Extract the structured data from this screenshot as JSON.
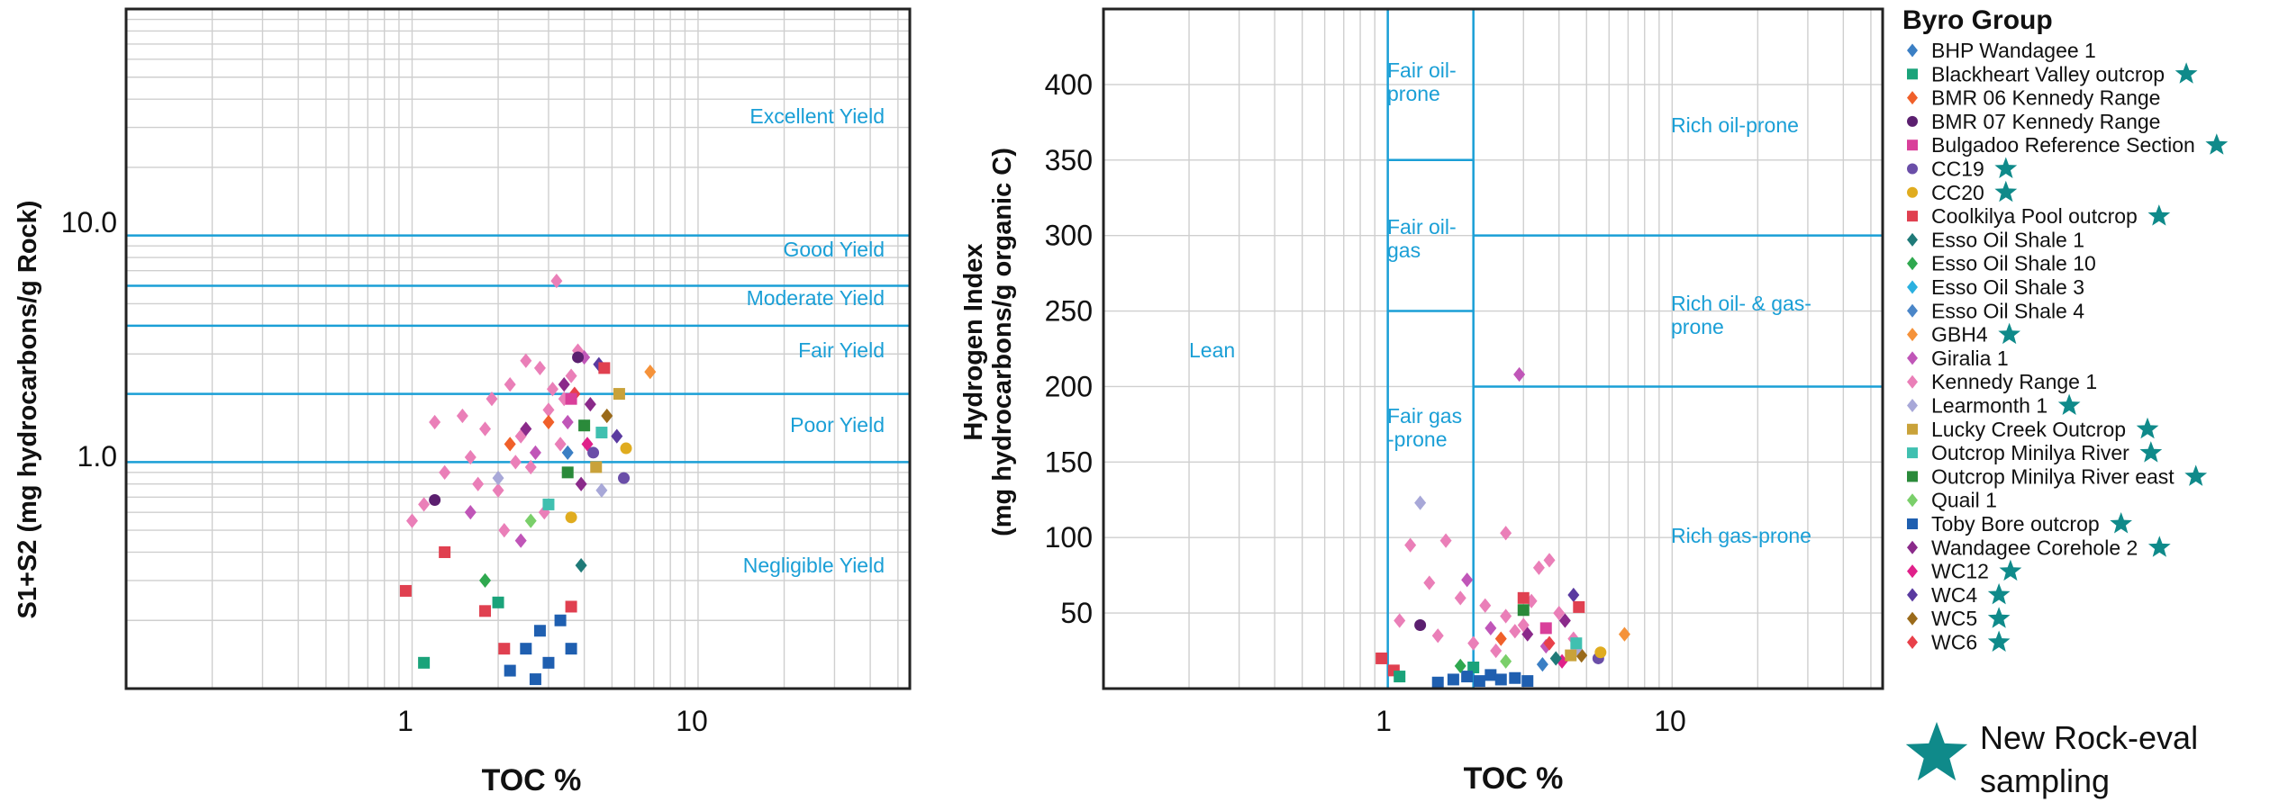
{
  "charts": [
    {
      "xlabel": "TOC %",
      "ylabel": "S1+S2 (mg hydrocarbons/g Rock)",
      "xticks": [
        "1",
        "10"
      ],
      "yticks": [
        "1.0",
        "10.0"
      ],
      "zones": [
        "Excellent Yield",
        "Good Yield",
        "Moderate Yield",
        "Fair Yield",
        "Poor Yield",
        "Negligible Yield"
      ]
    },
    {
      "xlabel": "TOC %",
      "ylabel_line1": "Hydrogen Index",
      "ylabel_line2": "(mg hydrocarbons/g organic C)",
      "xticks": [
        "1",
        "10"
      ],
      "yticks": [
        "50",
        "100",
        "150",
        "200",
        "250",
        "300",
        "350",
        "400"
      ],
      "zones": [
        "Lean",
        "Fair oil-",
        "prone",
        "Fair oil-",
        "gas",
        "Fair gas",
        "-prone",
        "Rich oil-prone",
        "Rich oil- & gas-",
        "prone",
        "Rich gas-prone"
      ]
    }
  ],
  "legend": {
    "title": "Byro Group",
    "entries": [
      {
        "name": "BHP Wandagee 1",
        "color": "#3b7fc4",
        "marker": "diamond",
        "star": false
      },
      {
        "name": "Blackheart Valley outcrop",
        "color": "#1aa37a",
        "marker": "square",
        "star": true
      },
      {
        "name": "BMR 06 Kennedy Range",
        "color": "#f0602a",
        "marker": "diamond",
        "star": false
      },
      {
        "name": "BMR 07 Kennedy Range",
        "color": "#5b1f6f",
        "marker": "circle",
        "star": false
      },
      {
        "name": "Bulgadoo Reference Section",
        "color": "#d93f9a",
        "marker": "square",
        "star": true
      },
      {
        "name": "CC19",
        "color": "#6a4ea8",
        "marker": "circle",
        "star": true
      },
      {
        "name": "CC20",
        "color": "#e0ac1f",
        "marker": "circle",
        "star": true
      },
      {
        "name": "Coolkilya Pool outcrop",
        "color": "#e04050",
        "marker": "square",
        "star": true
      },
      {
        "name": "Esso Oil Shale 1",
        "color": "#1f7a78",
        "marker": "diamond",
        "star": false
      },
      {
        "name": "Esso Oil Shale 10",
        "color": "#2fa84f",
        "marker": "diamond",
        "star": false
      },
      {
        "name": "Esso Oil Shale 3",
        "color": "#2ab0e0",
        "marker": "diamond",
        "star": false
      },
      {
        "name": "Esso Oil Shale 4",
        "color": "#4a86c8",
        "marker": "diamond",
        "star": false
      },
      {
        "name": "GBH4",
        "color": "#f5923a",
        "marker": "diamond",
        "star": true
      },
      {
        "name": "Giralia 1",
        "color": "#c056b8",
        "marker": "diamond",
        "star": false
      },
      {
        "name": "Kennedy Range 1",
        "color": "#ea7fb8",
        "marker": "diamond",
        "star": false
      },
      {
        "name": "Learmonth 1",
        "color": "#a8a8d8",
        "marker": "diamond",
        "star": true
      },
      {
        "name": "Lucky Creek Outcrop",
        "color": "#c9a23a",
        "marker": "square",
        "star": true
      },
      {
        "name": "Outcrop Minilya River",
        "color": "#40c0b0",
        "marker": "square",
        "star": true
      },
      {
        "name": "Outcrop Minilya River east",
        "color": "#2a8a3a",
        "marker": "square",
        "star": true
      },
      {
        "name": "Quail 1",
        "color": "#7acf6a",
        "marker": "diamond",
        "star": false
      },
      {
        "name": "Toby Bore outcrop",
        "color": "#1f5fb0",
        "marker": "square",
        "star": true
      },
      {
        "name": "Wandagee Corehole 2",
        "color": "#8a2a8a",
        "marker": "diamond",
        "star": true
      },
      {
        "name": "WC12",
        "color": "#e0208a",
        "marker": "diamond",
        "star": true
      },
      {
        "name": "WC4",
        "color": "#5a3aa0",
        "marker": "diamond",
        "star": true
      },
      {
        "name": "WC5",
        "color": "#9a6a1a",
        "marker": "diamond",
        "star": true
      },
      {
        "name": "WC6",
        "color": "#e8404a",
        "marker": "diamond",
        "star": true
      }
    ],
    "star_color": "#0f8a8a",
    "star_note_line1": "New Rock-eval",
    "star_note_line2": "sampling"
  },
  "chart_data": [
    {
      "type": "scatter",
      "xlabel": "TOC %",
      "ylabel": "S1+S2 (mg hydrocarbons/g Rock)",
      "xscale": "log",
      "yscale": "log",
      "xlim": [
        0.1,
        55
      ],
      "ylim": [
        0.1,
        100
      ],
      "grid": true,
      "boundaries_y": [
        1,
        2,
        4,
        6,
        10
      ],
      "points": [
        {
          "s": "Kennedy Range 1",
          "x": 1.0,
          "y": 0.55
        },
        {
          "s": "Kennedy Range 1",
          "x": 1.1,
          "y": 0.65
        },
        {
          "s": "Kennedy Range 1",
          "x": 1.3,
          "y": 0.9
        },
        {
          "s": "Kennedy Range 1",
          "x": 1.5,
          "y": 1.6
        },
        {
          "s": "Kennedy Range 1",
          "x": 1.6,
          "y": 1.05
        },
        {
          "s": "Kennedy Range 1",
          "x": 1.8,
          "y": 1.4
        },
        {
          "s": "Kennedy Range 1",
          "x": 2.0,
          "y": 0.75
        },
        {
          "s": "Kennedy Range 1",
          "x": 2.2,
          "y": 2.2
        },
        {
          "s": "Kennedy Range 1",
          "x": 2.4,
          "y": 1.3
        },
        {
          "s": "Kennedy Range 1",
          "x": 2.6,
          "y": 0.95
        },
        {
          "s": "Kennedy Range 1",
          "x": 2.8,
          "y": 2.6
        },
        {
          "s": "Kennedy Range 1",
          "x": 3.0,
          "y": 1.7
        },
        {
          "s": "Kennedy Range 1",
          "x": 3.2,
          "y": 6.3
        },
        {
          "s": "Kennedy Range 1",
          "x": 3.4,
          "y": 1.9
        },
        {
          "s": "Kennedy Range 1",
          "x": 3.6,
          "y": 2.4
        },
        {
          "s": "Kennedy Range 1",
          "x": 3.8,
          "y": 3.1
        },
        {
          "s": "Kennedy Range 1",
          "x": 2.1,
          "y": 0.5
        },
        {
          "s": "Kennedy Range 1",
          "x": 1.7,
          "y": 0.8
        },
        {
          "s": "Kennedy Range 1",
          "x": 2.5,
          "y": 2.8
        },
        {
          "s": "Kennedy Range 1",
          "x": 3.3,
          "y": 1.2
        },
        {
          "s": "Kennedy Range 1",
          "x": 1.2,
          "y": 1.5
        },
        {
          "s": "Kennedy Range 1",
          "x": 2.9,
          "y": 0.6
        },
        {
          "s": "Kennedy Range 1",
          "x": 1.9,
          "y": 1.9
        },
        {
          "s": "Kennedy Range 1",
          "x": 3.1,
          "y": 2.1
        },
        {
          "s": "Kennedy Range 1",
          "x": 2.3,
          "y": 1.0
        },
        {
          "s": "Giralia 1",
          "x": 1.6,
          "y": 0.6
        },
        {
          "s": "Giralia 1",
          "x": 2.4,
          "y": 0.45
        },
        {
          "s": "Giralia 1",
          "x": 3.5,
          "y": 1.5
        },
        {
          "s": "Giralia 1",
          "x": 4.0,
          "y": 2.9
        },
        {
          "s": "Giralia 1",
          "x": 2.7,
          "y": 1.1
        },
        {
          "s": "Wandagee Corehole 2",
          "x": 2.5,
          "y": 1.4
        },
        {
          "s": "Wandagee Corehole 2",
          "x": 3.4,
          "y": 2.2
        },
        {
          "s": "Wandagee Corehole 2",
          "x": 4.2,
          "y": 1.8
        },
        {
          "s": "Wandagee Corehole 2",
          "x": 3.9,
          "y": 0.8
        },
        {
          "s": "WC4",
          "x": 4.5,
          "y": 2.7
        },
        {
          "s": "WC4",
          "x": 5.2,
          "y": 1.3
        },
        {
          "s": "WC5",
          "x": 4.8,
          "y": 1.6
        },
        {
          "s": "WC6",
          "x": 3.7,
          "y": 2.0
        },
        {
          "s": "WC12",
          "x": 4.1,
          "y": 1.2
        },
        {
          "s": "BMR 06 Kennedy Range",
          "x": 2.2,
          "y": 1.2
        },
        {
          "s": "BMR 06 Kennedy Range",
          "x": 3.0,
          "y": 1.5
        },
        {
          "s": "BMR 07 Kennedy Range",
          "x": 1.2,
          "y": 0.68
        },
        {
          "s": "BMR 07 Kennedy Range",
          "x": 3.8,
          "y": 2.9
        },
        {
          "s": "CC19",
          "x": 5.5,
          "y": 0.85
        },
        {
          "s": "CC19",
          "x": 4.3,
          "y": 1.1
        },
        {
          "s": "CC20",
          "x": 3.6,
          "y": 0.57
        },
        {
          "s": "CC20",
          "x": 5.6,
          "y": 1.15
        },
        {
          "s": "GBH4",
          "x": 6.8,
          "y": 2.5
        },
        {
          "s": "Learmonth 1",
          "x": 2.0,
          "y": 0.85
        },
        {
          "s": "Learmonth 1",
          "x": 4.6,
          "y": 0.75
        },
        {
          "s": "Lucky Creek Outcrop",
          "x": 4.4,
          "y": 0.95
        },
        {
          "s": "Lucky Creek Outcrop",
          "x": 5.3,
          "y": 2.0
        },
        {
          "s": "Outcrop Minilya River",
          "x": 4.6,
          "y": 1.35
        },
        {
          "s": "Outcrop Minilya River",
          "x": 3.0,
          "y": 0.65
        },
        {
          "s": "Outcrop Minilya River east",
          "x": 4.0,
          "y": 1.45
        },
        {
          "s": "Outcrop Minilya River east",
          "x": 3.5,
          "y": 0.9
        },
        {
          "s": "Bulgadoo Reference Section",
          "x": 3.6,
          "y": 1.9
        },
        {
          "s": "Coolkilya Pool outcrop",
          "x": 4.7,
          "y": 2.6
        },
        {
          "s": "Coolkilya Pool outcrop",
          "x": 1.3,
          "y": 0.4
        },
        {
          "s": "Coolkilya Pool outcrop",
          "x": 0.95,
          "y": 0.27
        },
        {
          "s": "Coolkilya Pool outcrop",
          "x": 1.8,
          "y": 0.22
        },
        {
          "s": "Coolkilya Pool outcrop",
          "x": 2.1,
          "y": 0.15
        },
        {
          "s": "Coolkilya Pool outcrop",
          "x": 3.6,
          "y": 0.23
        },
        {
          "s": "Blackheart Valley outcrop",
          "x": 1.1,
          "y": 0.13
        },
        {
          "s": "Blackheart Valley outcrop",
          "x": 2.0,
          "y": 0.24
        },
        {
          "s": "Toby Bore outcrop",
          "x": 2.2,
          "y": 0.12
        },
        {
          "s": "Toby Bore outcrop",
          "x": 2.5,
          "y": 0.15
        },
        {
          "s": "Toby Bore outcrop",
          "x": 2.8,
          "y": 0.18
        },
        {
          "s": "Toby Bore outcrop",
          "x": 3.0,
          "y": 0.13
        },
        {
          "s": "Toby Bore outcrop",
          "x": 3.3,
          "y": 0.2
        },
        {
          "s": "Toby Bore outcrop",
          "x": 3.6,
          "y": 0.15
        },
        {
          "s": "Toby Bore outcrop",
          "x": 2.7,
          "y": 0.11
        },
        {
          "s": "Esso Oil Shale 1",
          "x": 3.9,
          "y": 0.35
        },
        {
          "s": "Esso Oil Shale 10",
          "x": 1.8,
          "y": 0.3
        },
        {
          "s": "Quail 1",
          "x": 2.6,
          "y": 0.55
        },
        {
          "s": "BHP Wandagee 1",
          "x": 3.5,
          "y": 1.1
        }
      ]
    },
    {
      "type": "scatter",
      "xlabel": "TOC %",
      "ylabel": "Hydrogen Index (mg hydrocarbons/g organic C)",
      "xscale": "log",
      "ylim": [
        0,
        450
      ],
      "xlim": [
        0.1,
        55
      ],
      "grid": true,
      "boundaries": {
        "x": [
          1,
          2
        ],
        "y_segments": [
          250,
          350
        ],
        "y_rich": [
          200,
          300
        ]
      },
      "points": [
        {
          "s": "Giralia 1",
          "x": 2.9,
          "y": 208
        },
        {
          "s": "Learmonth 1",
          "x": 1.3,
          "y": 123
        },
        {
          "s": "Kennedy Range 1",
          "x": 1.2,
          "y": 95
        },
        {
          "s": "Kennedy Range 1",
          "x": 1.6,
          "y": 98
        },
        {
          "s": "Kennedy Range 1",
          "x": 2.6,
          "y": 103
        },
        {
          "s": "Kennedy Range 1",
          "x": 1.4,
          "y": 70
        },
        {
          "s": "Kennedy Range 1",
          "x": 1.8,
          "y": 60
        },
        {
          "s": "Kennedy Range 1",
          "x": 2.2,
          "y": 55
        },
        {
          "s": "Kennedy Range 1",
          "x": 2.6,
          "y": 48
        },
        {
          "s": "Kennedy Range 1",
          "x": 3.0,
          "y": 42
        },
        {
          "s": "Kennedy Range 1",
          "x": 3.4,
          "y": 80
        },
        {
          "s": "Kennedy Range 1",
          "x": 3.7,
          "y": 85
        },
        {
          "s": "Kennedy Range 1",
          "x": 1.1,
          "y": 45
        },
        {
          "s": "Kennedy Range 1",
          "x": 1.5,
          "y": 35
        },
        {
          "s": "Kennedy Range 1",
          "x": 2.0,
          "y": 30
        },
        {
          "s": "Kennedy Range 1",
          "x": 2.4,
          "y": 25
        },
        {
          "s": "Kennedy Range 1",
          "x": 2.8,
          "y": 38
        },
        {
          "s": "Kennedy Range 1",
          "x": 3.2,
          "y": 58
        },
        {
          "s": "Kennedy Range 1",
          "x": 4.0,
          "y": 50
        },
        {
          "s": "Kennedy Range 1",
          "x": 4.5,
          "y": 33
        },
        {
          "s": "Giralia 1",
          "x": 1.9,
          "y": 72
        },
        {
          "s": "Giralia 1",
          "x": 2.3,
          "y": 40
        },
        {
          "s": "Giralia 1",
          "x": 3.6,
          "y": 28
        },
        {
          "s": "Wandagee Corehole 2",
          "x": 3.1,
          "y": 36
        },
        {
          "s": "Wandagee Corehole 2",
          "x": 4.2,
          "y": 45
        },
        {
          "s": "WC4",
          "x": 4.5,
          "y": 62
        },
        {
          "s": "WC5",
          "x": 4.8,
          "y": 22
        },
        {
          "s": "WC6",
          "x": 3.7,
          "y": 30
        },
        {
          "s": "WC12",
          "x": 4.1,
          "y": 18
        },
        {
          "s": "BMR 07 Kennedy Range",
          "x": 1.3,
          "y": 42
        },
        {
          "s": "BMR 06 Kennedy Range",
          "x": 2.5,
          "y": 33
        },
        {
          "s": "CC19",
          "x": 5.5,
          "y": 20
        },
        {
          "s": "CC20",
          "x": 5.6,
          "y": 24
        },
        {
          "s": "GBH4",
          "x": 6.8,
          "y": 36
        },
        {
          "s": "Learmonth 1",
          "x": 4.6,
          "y": 26
        },
        {
          "s": "Lucky Creek Outcrop",
          "x": 4.4,
          "y": 22
        },
        {
          "s": "Outcrop Minilya River",
          "x": 4.6,
          "y": 30
        },
        {
          "s": "Outcrop Minilya River east",
          "x": 3.0,
          "y": 52
        },
        {
          "s": "Bulgadoo Reference Section",
          "x": 3.6,
          "y": 40
        },
        {
          "s": "Coolkilya Pool outcrop",
          "x": 3.0,
          "y": 60
        },
        {
          "s": "Coolkilya Pool outcrop",
          "x": 4.7,
          "y": 54
        },
        {
          "s": "Coolkilya Pool outcrop",
          "x": 0.95,
          "y": 20
        },
        {
          "s": "Coolkilya Pool outcrop",
          "x": 1.05,
          "y": 12
        },
        {
          "s": "Blackheart Valley outcrop",
          "x": 1.1,
          "y": 8
        },
        {
          "s": "Blackheart Valley outcrop",
          "x": 2.0,
          "y": 14
        },
        {
          "s": "Toby Bore outcrop",
          "x": 1.7,
          "y": 6
        },
        {
          "s": "Toby Bore outcrop",
          "x": 1.9,
          "y": 8
        },
        {
          "s": "Toby Bore outcrop",
          "x": 2.1,
          "y": 5
        },
        {
          "s": "Toby Bore outcrop",
          "x": 2.3,
          "y": 9
        },
        {
          "s": "Toby Bore outcrop",
          "x": 2.5,
          "y": 6
        },
        {
          "s": "Toby Bore outcrop",
          "x": 2.8,
          "y": 7
        },
        {
          "s": "Toby Bore outcrop",
          "x": 3.1,
          "y": 5
        },
        {
          "s": "Toby Bore outcrop",
          "x": 1.5,
          "y": 4
        },
        {
          "s": "Esso Oil Shale 1",
          "x": 3.9,
          "y": 20
        },
        {
          "s": "Esso Oil Shale 10",
          "x": 1.8,
          "y": 15
        },
        {
          "s": "Quail 1",
          "x": 2.6,
          "y": 18
        },
        {
          "s": "BHP Wandagee 1",
          "x": 3.5,
          "y": 16
        }
      ]
    }
  ]
}
